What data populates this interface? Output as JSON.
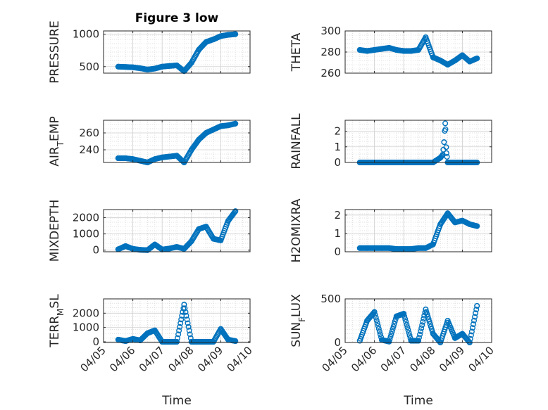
{
  "figure": {
    "title": "Figure 3 low",
    "xlabel": "Time",
    "xticks": [
      "04/05",
      "04/06",
      "04/07",
      "04/08",
      "04/09",
      "04/10"
    ],
    "marker_color": "#0072BD"
  },
  "chart_data": [
    {
      "type": "scatter",
      "ylabel": "PRESSURE",
      "ylim": [
        400,
        1050
      ],
      "yticks": [
        500,
        1000
      ],
      "grid": true,
      "xlim": [
        "04/05",
        "04/10"
      ],
      "x": [
        "04/05 12:00",
        "04/05 18:00",
        "04/06 00:00",
        "04/06 06:00",
        "04/06 12:00",
        "04/06 18:00",
        "04/07 00:00",
        "04/07 06:00",
        "04/07 12:00",
        "04/07 18:00",
        "04/08 00:00",
        "04/08 06:00",
        "04/08 12:00",
        "04/08 18:00",
        "04/09 00:00",
        "04/09 06:00",
        "04/09 12:00"
      ],
      "y": [
        500,
        495,
        490,
        475,
        455,
        470,
        500,
        510,
        520,
        430,
        560,
        760,
        880,
        920,
        970,
        990,
        1000
      ]
    },
    {
      "type": "scatter",
      "ylabel": "THETA",
      "ylim": [
        260,
        300
      ],
      "yticks": [
        260,
        280,
        300
      ],
      "grid": true,
      "xlim": [
        "04/05",
        "04/10"
      ],
      "x": [
        "04/05 12:00",
        "04/05 18:00",
        "04/06 00:00",
        "04/06 06:00",
        "04/06 12:00",
        "04/06 18:00",
        "04/07 00:00",
        "04/07 06:00",
        "04/07 12:00",
        "04/07 18:00",
        "04/08 00:00",
        "04/08 06:00",
        "04/08 12:00",
        "04/08 18:00",
        "04/09 00:00",
        "04/09 06:00",
        "04/09 12:00"
      ],
      "y": [
        282,
        281,
        282,
        283,
        284,
        282,
        281,
        281,
        282,
        294,
        275,
        272,
        268,
        272,
        277,
        271,
        274
      ]
    },
    {
      "type": "scatter",
      "ylabel": "AIR_TEMP",
      "ylim": [
        225,
        275
      ],
      "yticks": [
        240,
        260
      ],
      "grid": true,
      "xlim": [
        "04/05",
        "04/10"
      ],
      "x": [
        "04/05 12:00",
        "04/05 18:00",
        "04/06 00:00",
        "04/06 06:00",
        "04/06 12:00",
        "04/06 18:00",
        "04/07 00:00",
        "04/07 06:00",
        "04/07 12:00",
        "04/07 18:00",
        "04/08 00:00",
        "04/08 06:00",
        "04/08 12:00",
        "04/08 18:00",
        "04/09 00:00",
        "04/09 06:00",
        "04/09 12:00"
      ],
      "y": [
        230,
        230,
        229,
        227,
        225,
        229,
        231,
        232,
        233,
        225,
        240,
        252,
        260,
        264,
        268,
        269,
        271
      ]
    },
    {
      "type": "scatter",
      "ylabel": "RAINFALL",
      "ylim": [
        0,
        2.7
      ],
      "yticks": [
        0,
        1,
        2
      ],
      "grid": true,
      "xlim": [
        "04/05",
        "04/10"
      ],
      "x": [
        "04/05 12:00",
        "04/06 00:00",
        "04/06 12:00",
        "04/07 00:00",
        "04/07 12:00",
        "04/08 00:00",
        "04/08 06:00",
        "04/08 08:00",
        "04/08 09:00",
        "04/08 10:00",
        "04/08 11:00",
        "04/08 12:00",
        "04/09 00:00",
        "04/09 12:00"
      ],
      "y": [
        0,
        0,
        0,
        0,
        0,
        0,
        0.3,
        0.5,
        1.3,
        2.5,
        0.6,
        0,
        0,
        0
      ]
    },
    {
      "type": "scatter",
      "ylabel": "MIXDEPTH",
      "ylim": [
        -100,
        2500
      ],
      "yticks": [
        0,
        1000,
        2000
      ],
      "grid": true,
      "xlim": [
        "04/05",
        "04/10"
      ],
      "x": [
        "04/05 12:00",
        "04/05 18:00",
        "04/06 00:00",
        "04/06 06:00",
        "04/06 12:00",
        "04/06 18:00",
        "04/07 00:00",
        "04/07 06:00",
        "04/07 12:00",
        "04/07 18:00",
        "04/08 00:00",
        "04/08 06:00",
        "04/08 12:00",
        "04/08 18:00",
        "04/09 00:00",
        "04/09 06:00",
        "04/09 12:00"
      ],
      "y": [
        50,
        250,
        80,
        20,
        0,
        350,
        40,
        100,
        200,
        80,
        550,
        1300,
        1450,
        700,
        600,
        1800,
        2400
      ]
    },
    {
      "type": "scatter",
      "ylabel": "H2OMIXRA",
      "ylim": [
        0,
        2.3
      ],
      "yticks": [
        0,
        1,
        2
      ],
      "grid": true,
      "xlim": [
        "04/05",
        "04/10"
      ],
      "x": [
        "04/05 12:00",
        "04/05 18:00",
        "04/06 00:00",
        "04/06 06:00",
        "04/06 12:00",
        "04/06 18:00",
        "04/07 00:00",
        "04/07 06:00",
        "04/07 12:00",
        "04/07 18:00",
        "04/08 00:00",
        "04/08 06:00",
        "04/08 12:00",
        "04/08 18:00",
        "04/09 00:00",
        "04/09 06:00",
        "04/09 12:00"
      ],
      "y": [
        0.2,
        0.2,
        0.2,
        0.2,
        0.2,
        0.15,
        0.15,
        0.15,
        0.2,
        0.2,
        0.4,
        1.5,
        2.1,
        1.6,
        1.7,
        1.5,
        1.4
      ]
    },
    {
      "type": "scatter",
      "ylabel": "TERR_MSL",
      "ylim": [
        -50,
        3000
      ],
      "yticks": [
        0,
        1000,
        2000
      ],
      "grid": true,
      "xlim": [
        "04/05",
        "04/10"
      ],
      "x": [
        "04/05 12:00",
        "04/05 18:00",
        "04/06 00:00",
        "04/06 06:00",
        "04/06 12:00",
        "04/06 18:00",
        "04/07 00:00",
        "04/07 06:00",
        "04/07 12:00",
        "04/07 18:00",
        "04/08 00:00",
        "04/08 06:00",
        "04/08 12:00",
        "04/08 18:00",
        "04/09 00:00",
        "04/09 06:00",
        "04/09 12:00"
      ],
      "y": [
        150,
        50,
        200,
        100,
        600,
        800,
        0,
        0,
        0,
        2600,
        0,
        0,
        0,
        0,
        900,
        150,
        50
      ]
    },
    {
      "type": "scatter",
      "ylabel": "SUN_FLUX",
      "ylim": [
        0,
        500
      ],
      "yticks": [
        0,
        500
      ],
      "grid": true,
      "xlim": [
        "04/05",
        "04/10"
      ],
      "x": [
        "04/05 12:00",
        "04/05 18:00",
        "04/06 00:00",
        "04/06 06:00",
        "04/06 12:00",
        "04/06 18:00",
        "04/07 00:00",
        "04/07 06:00",
        "04/07 12:00",
        "04/07 18:00",
        "04/08 00:00",
        "04/08 06:00",
        "04/08 12:00",
        "04/08 18:00",
        "04/09 00:00",
        "04/09 06:00",
        "04/09 12:00"
      ],
      "y": [
        20,
        250,
        350,
        30,
        10,
        300,
        330,
        20,
        20,
        380,
        100,
        0,
        250,
        50,
        100,
        0,
        420
      ]
    }
  ]
}
